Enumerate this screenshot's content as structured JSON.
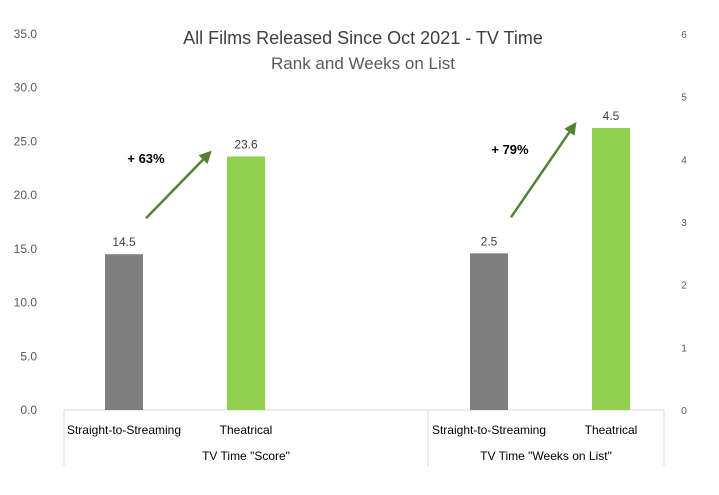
{
  "chart_data": {
    "type": "bar",
    "title": "All Films Released Since Oct 2021 - TV Time",
    "subtitle": "Rank and Weeks on List",
    "left_axis": {
      "ylim": [
        0,
        35
      ],
      "ticks": [
        "0.0",
        "5.0",
        "10.0",
        "15.0",
        "20.0",
        "25.0",
        "30.0",
        "35.0"
      ]
    },
    "right_axis": {
      "ylim": [
        0,
        6
      ],
      "ticks": [
        "0",
        "1",
        "2",
        "3",
        "4",
        "5",
        "6"
      ]
    },
    "grid": false,
    "legend": "none",
    "groups": [
      {
        "label": "TV Time \"Score\"",
        "axis": "left",
        "categories": [
          "Straight-to-Streaming",
          "Theatrical"
        ],
        "values": [
          14.5,
          23.6
        ],
        "value_labels": [
          "14.5",
          "23.6"
        ],
        "colors": [
          "#7f7f7f",
          "#92d050"
        ],
        "annotation": "+ 63%"
      },
      {
        "label": "TV Time \"Weeks on List\"",
        "axis": "right",
        "categories": [
          "Straight-to-Streaming",
          "Theatrical"
        ],
        "values": [
          2.5,
          4.5
        ],
        "value_labels": [
          "2.5",
          "4.5"
        ],
        "colors": [
          "#7f7f7f",
          "#92d050"
        ],
        "annotation": "+ 79%"
      }
    ],
    "arrow_color": "#548235"
  }
}
